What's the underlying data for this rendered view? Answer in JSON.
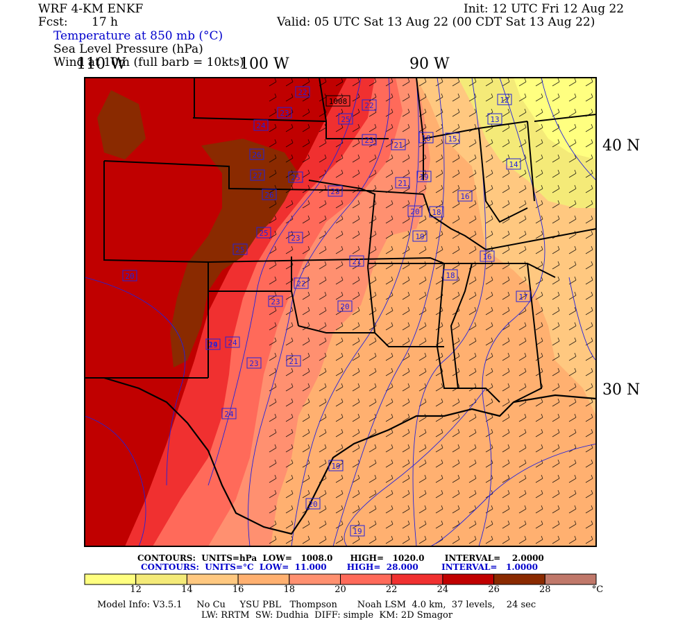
{
  "header": {
    "model": "WRF 4-KM ENKF",
    "fcst_label": "Fcst:",
    "fcst_value": "17 h",
    "init": "Init: 12 UTC Fri 12 Aug 22",
    "valid": "Valid: 05 UTC Sat 13 Aug 22 (00 CDT Sat 13 Aug 22)",
    "field1": "Temperature at 850 mb (°C)",
    "field2": "Sea Level Pressure (hPa)",
    "field3": "Wind at 10m (full barb = 10kts)"
  },
  "axes": {
    "lon_labels": [
      "110 W",
      "100 W",
      "90 W"
    ],
    "lat_labels": [
      "40 N",
      "30 N"
    ]
  },
  "colors": {
    "c10_12": "#ffff80",
    "c12_14": "#f4ea78",
    "c14_16": "#ffc880",
    "c16_18": "#ffb070",
    "c18_20": "#ff9070",
    "c20_22": "#ff6a5a",
    "c22_24": "#f03030",
    "c24_26": "#c00000",
    "c26_28": "#8a2a00",
    "c28_up": "#c0786a",
    "contour_temp": "#2222dd",
    "boundary": "#000000"
  },
  "temp_labels": [
    {
      "v": "22"
    },
    {
      "v": "23"
    },
    {
      "v": "24"
    },
    {
      "v": "25"
    },
    {
      "v": "26"
    },
    {
      "v": "27"
    },
    {
      "v": "26"
    },
    {
      "v": "25"
    },
    {
      "v": "23"
    },
    {
      "v": "21"
    },
    {
      "v": "22"
    },
    {
      "v": "23"
    },
    {
      "v": "21"
    },
    {
      "v": "23"
    },
    {
      "v": "20"
    },
    {
      "v": "19"
    },
    {
      "v": "18"
    },
    {
      "v": "21"
    },
    {
      "v": "20"
    },
    {
      "v": "19"
    },
    {
      "v": "18"
    },
    {
      "v": "16"
    },
    {
      "v": "15"
    },
    {
      "v": "13"
    },
    {
      "v": "12"
    },
    {
      "v": "14"
    },
    {
      "v": "16"
    },
    {
      "v": "18"
    },
    {
      "v": "17"
    },
    {
      "v": "19"
    },
    {
      "v": "20"
    },
    {
      "v": "21"
    },
    {
      "v": "23"
    },
    {
      "v": "24"
    },
    {
      "v": "25"
    },
    {
      "v": "24"
    },
    {
      "v": "19"
    },
    {
      "v": "20"
    },
    {
      "v": "19"
    },
    {
      "v": "22"
    },
    {
      "v": "25"
    },
    {
      "v": "23"
    },
    {
      "v": "24"
    }
  ],
  "pressure_labels": [
    "1008"
  ],
  "contour_info": {
    "line1": "CONTOURS:  UNITS=hPa  LOW=   1008.0      HIGH=   1020.0       INTERVAL=    2.0000",
    "line2": "CONTOURS:  UNITS=°C  LOW=  11.000       HIGH=  28.000        INTERVAL=   1.0000"
  },
  "colorbar": {
    "ticks": [
      "12",
      "14",
      "16",
      "18",
      "20",
      "22",
      "24",
      "26",
      "28"
    ],
    "unit": "°C"
  },
  "model_info": {
    "line1": "Model Info: V3.5.1     No Cu     YSU PBL   Thompson       Noah LSM  4.0 km,  37 levels,    24 sec",
    "line2": "LW: RRTM  SW: Dudhia  DIFF: simple  KM: 2D Smagor"
  }
}
